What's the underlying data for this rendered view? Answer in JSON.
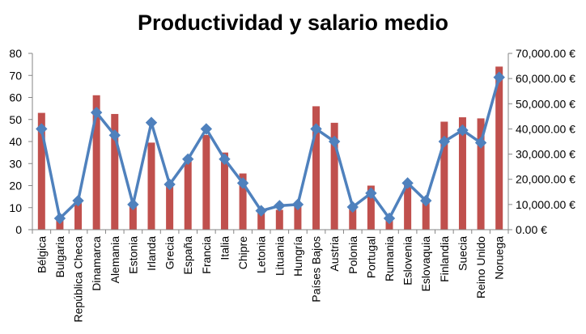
{
  "chart_data": {
    "type": "bar",
    "title": "Productividad y salario medio",
    "categories": [
      "Bélgica",
      "Bulgaria",
      "República Checa",
      "Dinamarca",
      "Alemania",
      "Estonia",
      "Irlanda",
      "Grecia",
      "España",
      "Francia",
      "Italia",
      "Chipre",
      "Letonia",
      "Lituania",
      "Hungría",
      "Países Bajos",
      "Austria",
      "Polonia",
      "Portugal",
      "Rumania",
      "Eslovenia",
      "Eslovaquia",
      "Finlandia",
      "Suecia",
      "Reino Unido",
      "Noruega"
    ],
    "series": [
      {
        "axis": "left",
        "type": "bar",
        "color": "#c0504d",
        "values": [
          53,
          5,
          13,
          61,
          52.5,
          12,
          39.5,
          21,
          31,
          43,
          35,
          25.5,
          8,
          9,
          11,
          56,
          48.5,
          11,
          20,
          5,
          21,
          13,
          49,
          51,
          50.5,
          74
        ]
      },
      {
        "axis": "right",
        "type": "line",
        "marker": "diamond",
        "color": "#4f81bd",
        "values": [
          40000,
          4500,
          11500,
          46500,
          37500,
          10000,
          42500,
          18000,
          28000,
          40000,
          28000,
          18500,
          7500,
          9500,
          10000,
          40000,
          35000,
          9000,
          14500,
          4500,
          18500,
          11500,
          35000,
          39500,
          34500,
          60500
        ]
      }
    ],
    "y_left": {
      "ylim": [
        0,
        80
      ],
      "ticks": [
        "0",
        "10",
        "20",
        "30",
        "40",
        "50",
        "60",
        "70",
        "80"
      ]
    },
    "y_right": {
      "ylim": [
        0,
        70000
      ],
      "ticks": [
        "0.00 €",
        "10,000.00 €",
        "20,000.00 €",
        "30,000.00 €",
        "40,000.00 €",
        "50,000.00 €",
        "60,000.00 €",
        "70,000.00 €"
      ]
    },
    "grid": false,
    "legend": "none"
  }
}
